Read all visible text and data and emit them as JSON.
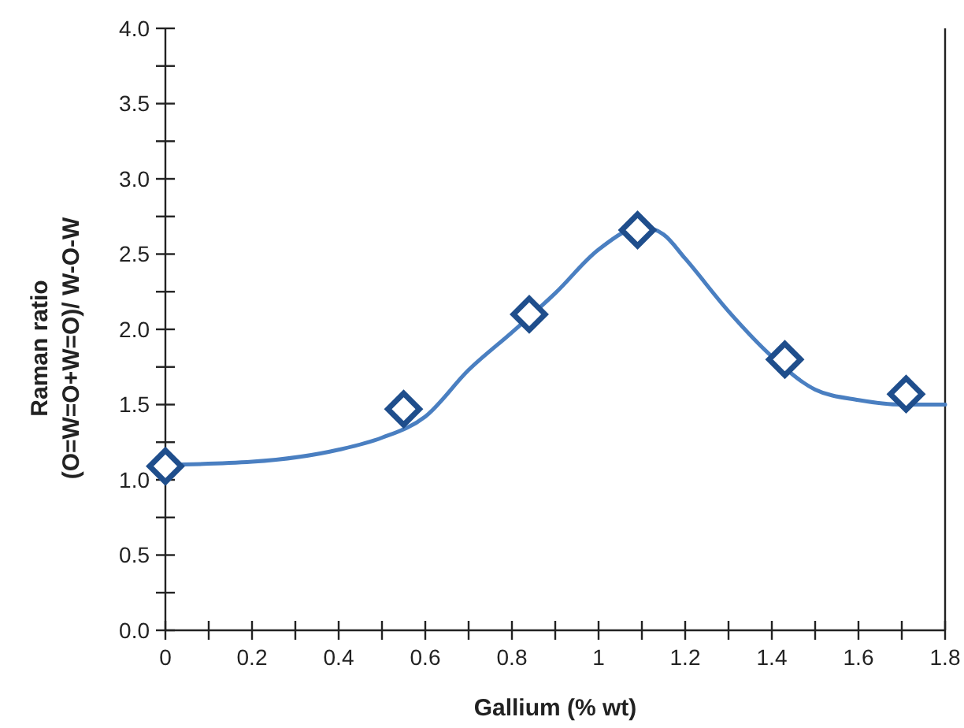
{
  "chart_data": {
    "type": "scatter",
    "xlabel": "Gallium (% wt)",
    "ylabel": "Raman ratio\n(O=W=O+W=O)/ W-O-W",
    "xlim": [
      0,
      1.8
    ],
    "ylim": [
      0,
      4
    ],
    "xticks": [
      0,
      {
        "value": 0.1,
        "label": null
      },
      0.2,
      {
        "value": 0.3,
        "label": null
      },
      0.4,
      {
        "value": 0.5,
        "label": null
      },
      0.6,
      {
        "value": 0.7,
        "label": null
      },
      0.8,
      {
        "value": 0.9,
        "label": null
      },
      1,
      {
        "value": 1.1,
        "label": null
      },
      1.2,
      {
        "value": 1.3,
        "label": null
      },
      1.4,
      {
        "value": 1.5,
        "label": null
      },
      1.6,
      {
        "value": 1.7,
        "label": null
      },
      1.8
    ],
    "yticks": [
      {
        "value": 0,
        "label": "0.0"
      },
      {
        "value": 0.25,
        "label": null
      },
      {
        "value": 0.5,
        "label": "0.5"
      },
      {
        "value": 0.75,
        "label": null
      },
      {
        "value": 1,
        "label": "1.0"
      },
      {
        "value": 1.25,
        "label": null
      },
      {
        "value": 1.5,
        "label": "1.5"
      },
      {
        "value": 1.75,
        "label": null
      },
      {
        "value": 2,
        "label": "2.0"
      },
      {
        "value": 2.25,
        "label": null
      },
      {
        "value": 2.5,
        "label": "2.5"
      },
      {
        "value": 2.75,
        "label": null
      },
      {
        "value": 3,
        "label": "3.0"
      },
      {
        "value": 3.25,
        "label": null
      },
      {
        "value": 3.5,
        "label": "3.5"
      },
      {
        "value": 3.75,
        "label": null
      },
      {
        "value": 4,
        "label": "4.0"
      }
    ],
    "grid": false,
    "series": [
      {
        "type": "line",
        "color": "#4a7fc1",
        "marker": "none",
        "line_style": "solid",
        "x": [
          0,
          0.2,
          0.4,
          0.5,
          0.6,
          0.7,
          0.8,
          0.9,
          1,
          1.1,
          1.15,
          1.2,
          1.3,
          1.4,
          1.5,
          1.6,
          1.7,
          1.8
        ],
        "values": [
          1.1,
          1.12,
          1.2,
          1.28,
          1.42,
          1.73,
          1.98,
          2.24,
          2.53,
          2.68,
          2.63,
          2.47,
          2.12,
          1.82,
          1.6,
          1.53,
          1.5,
          1.5
        ]
      },
      {
        "color": "#1f4e8c",
        "marker": "diamond",
        "x": [
          0,
          0.55,
          0.84,
          1.09,
          1.43,
          1.71
        ],
        "values": [
          1.09,
          1.47,
          2.1,
          2.66,
          1.8,
          1.57
        ]
      }
    ]
  }
}
